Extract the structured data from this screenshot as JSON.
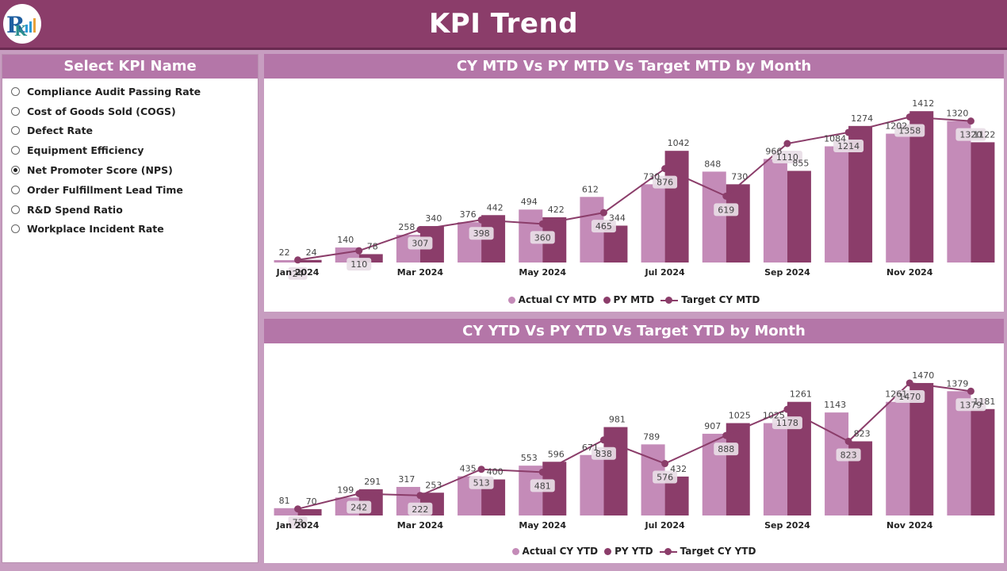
{
  "header": {
    "title": "KPI Trend"
  },
  "slicer": {
    "title": "Select KPI Name",
    "items": [
      {
        "label": "Compliance Audit Passing Rate",
        "selected": false
      },
      {
        "label": "Cost of Goods Sold (COGS)",
        "selected": false
      },
      {
        "label": "Defect Rate",
        "selected": false
      },
      {
        "label": "Equipment Efficiency",
        "selected": false
      },
      {
        "label": "Net Promoter Score (NPS)",
        "selected": true
      },
      {
        "label": "Order Fulfillment Lead Time",
        "selected": false
      },
      {
        "label": "R&D Spend Ratio",
        "selected": false
      },
      {
        "label": "Workplace Incident Rate",
        "selected": false
      }
    ]
  },
  "colors": {
    "actual": "#c48bb8",
    "py": "#8b3d6a",
    "target": "#8b3d6a",
    "accent": "#b476a8"
  },
  "chart_data": [
    {
      "type": "bar",
      "title": "CY MTD Vs PY MTD Vs Target MTD by Month",
      "categories": [
        "Jan 2024",
        "Feb 2024",
        "Mar 2024",
        "Apr 2024",
        "May 2024",
        "Jun 2024",
        "Jul 2024",
        "Aug 2024",
        "Sep 2024",
        "Oct 2024",
        "Nov 2024",
        "Dec 2024"
      ],
      "tick_labels": [
        "Jan 2024",
        "",
        "Mar 2024",
        "",
        "May 2024",
        "",
        "Jul 2024",
        "",
        "Sep 2024",
        "",
        "Nov 2024",
        ""
      ],
      "ylim": [
        0,
        1480
      ],
      "legend": [
        "Actual CY MTD",
        "PY MTD",
        "Target CY MTD"
      ],
      "series": [
        {
          "name": "Actual CY MTD",
          "values": [
            22,
            140,
            258,
            376,
            494,
            612,
            730,
            848,
            966,
            1084,
            1202,
            1320
          ]
        },
        {
          "name": "PY MTD",
          "values": [
            24,
            78,
            340,
            442,
            422,
            344,
            1042,
            730,
            855,
            1274,
            1412,
            1122
          ]
        },
        {
          "name": "Target CY MTD",
          "values": [
            24,
            110,
            307,
            398,
            360,
            465,
            876,
            619,
            1110,
            1214,
            1358,
            1320
          ]
        }
      ]
    },
    {
      "type": "bar",
      "title": "CY YTD Vs PY YTD Vs Target YTD by Month",
      "categories": [
        "Jan 2024",
        "Feb 2024",
        "Mar 2024",
        "Apr 2024",
        "May 2024",
        "Jun 2024",
        "Jul 2024",
        "Aug 2024",
        "Sep 2024",
        "Oct 2024",
        "Nov 2024",
        "Dec 2024"
      ],
      "tick_labels": [
        "Jan 2024",
        "",
        "Mar 2024",
        "",
        "May 2024",
        "",
        "Jul 2024",
        "",
        "Sep 2024",
        "",
        "Nov 2024",
        ""
      ],
      "ylim": [
        0,
        1540
      ],
      "legend": [
        "Actual CY YTD",
        "PY YTD",
        "Target CY YTD"
      ],
      "series": [
        {
          "name": "Actual CY YTD",
          "values": [
            81,
            199,
            317,
            435,
            553,
            671,
            789,
            907,
            1025,
            1143,
            1261,
            1379
          ]
        },
        {
          "name": "PY YTD",
          "values": [
            70,
            291,
            253,
            400,
            596,
            981,
            432,
            1025,
            1261,
            823,
            1470,
            1181
          ]
        },
        {
          "name": "Target CY YTD",
          "values": [
            73,
            242,
            222,
            513,
            481,
            838,
            576,
            888,
            1178,
            823,
            1470,
            1379
          ]
        }
      ]
    }
  ]
}
